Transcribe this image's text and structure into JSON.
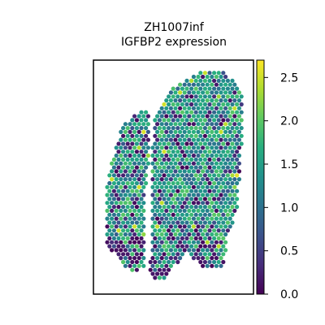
{
  "chart_data": {
    "type": "heatmap",
    "subtype": "spatial-spot-scatter",
    "title_line1": "ZH1007inf",
    "title_line2": "IGFBP2 expression",
    "xlabel": "",
    "ylabel": "",
    "colormap": "viridis",
    "color_range": [
      0.0,
      2.7
    ],
    "colorbar_ticks": [
      "0.0",
      "0.5",
      "1.0",
      "1.5",
      "2.0",
      "2.5"
    ],
    "colorbar_tick_values": [
      0.0,
      0.5,
      1.0,
      1.5,
      2.0,
      2.5
    ],
    "grid": false,
    "legend": "colorbar-right",
    "expression_summary": {
      "min": 0.0,
      "max": 2.6,
      "typical": 1.3
    }
  }
}
